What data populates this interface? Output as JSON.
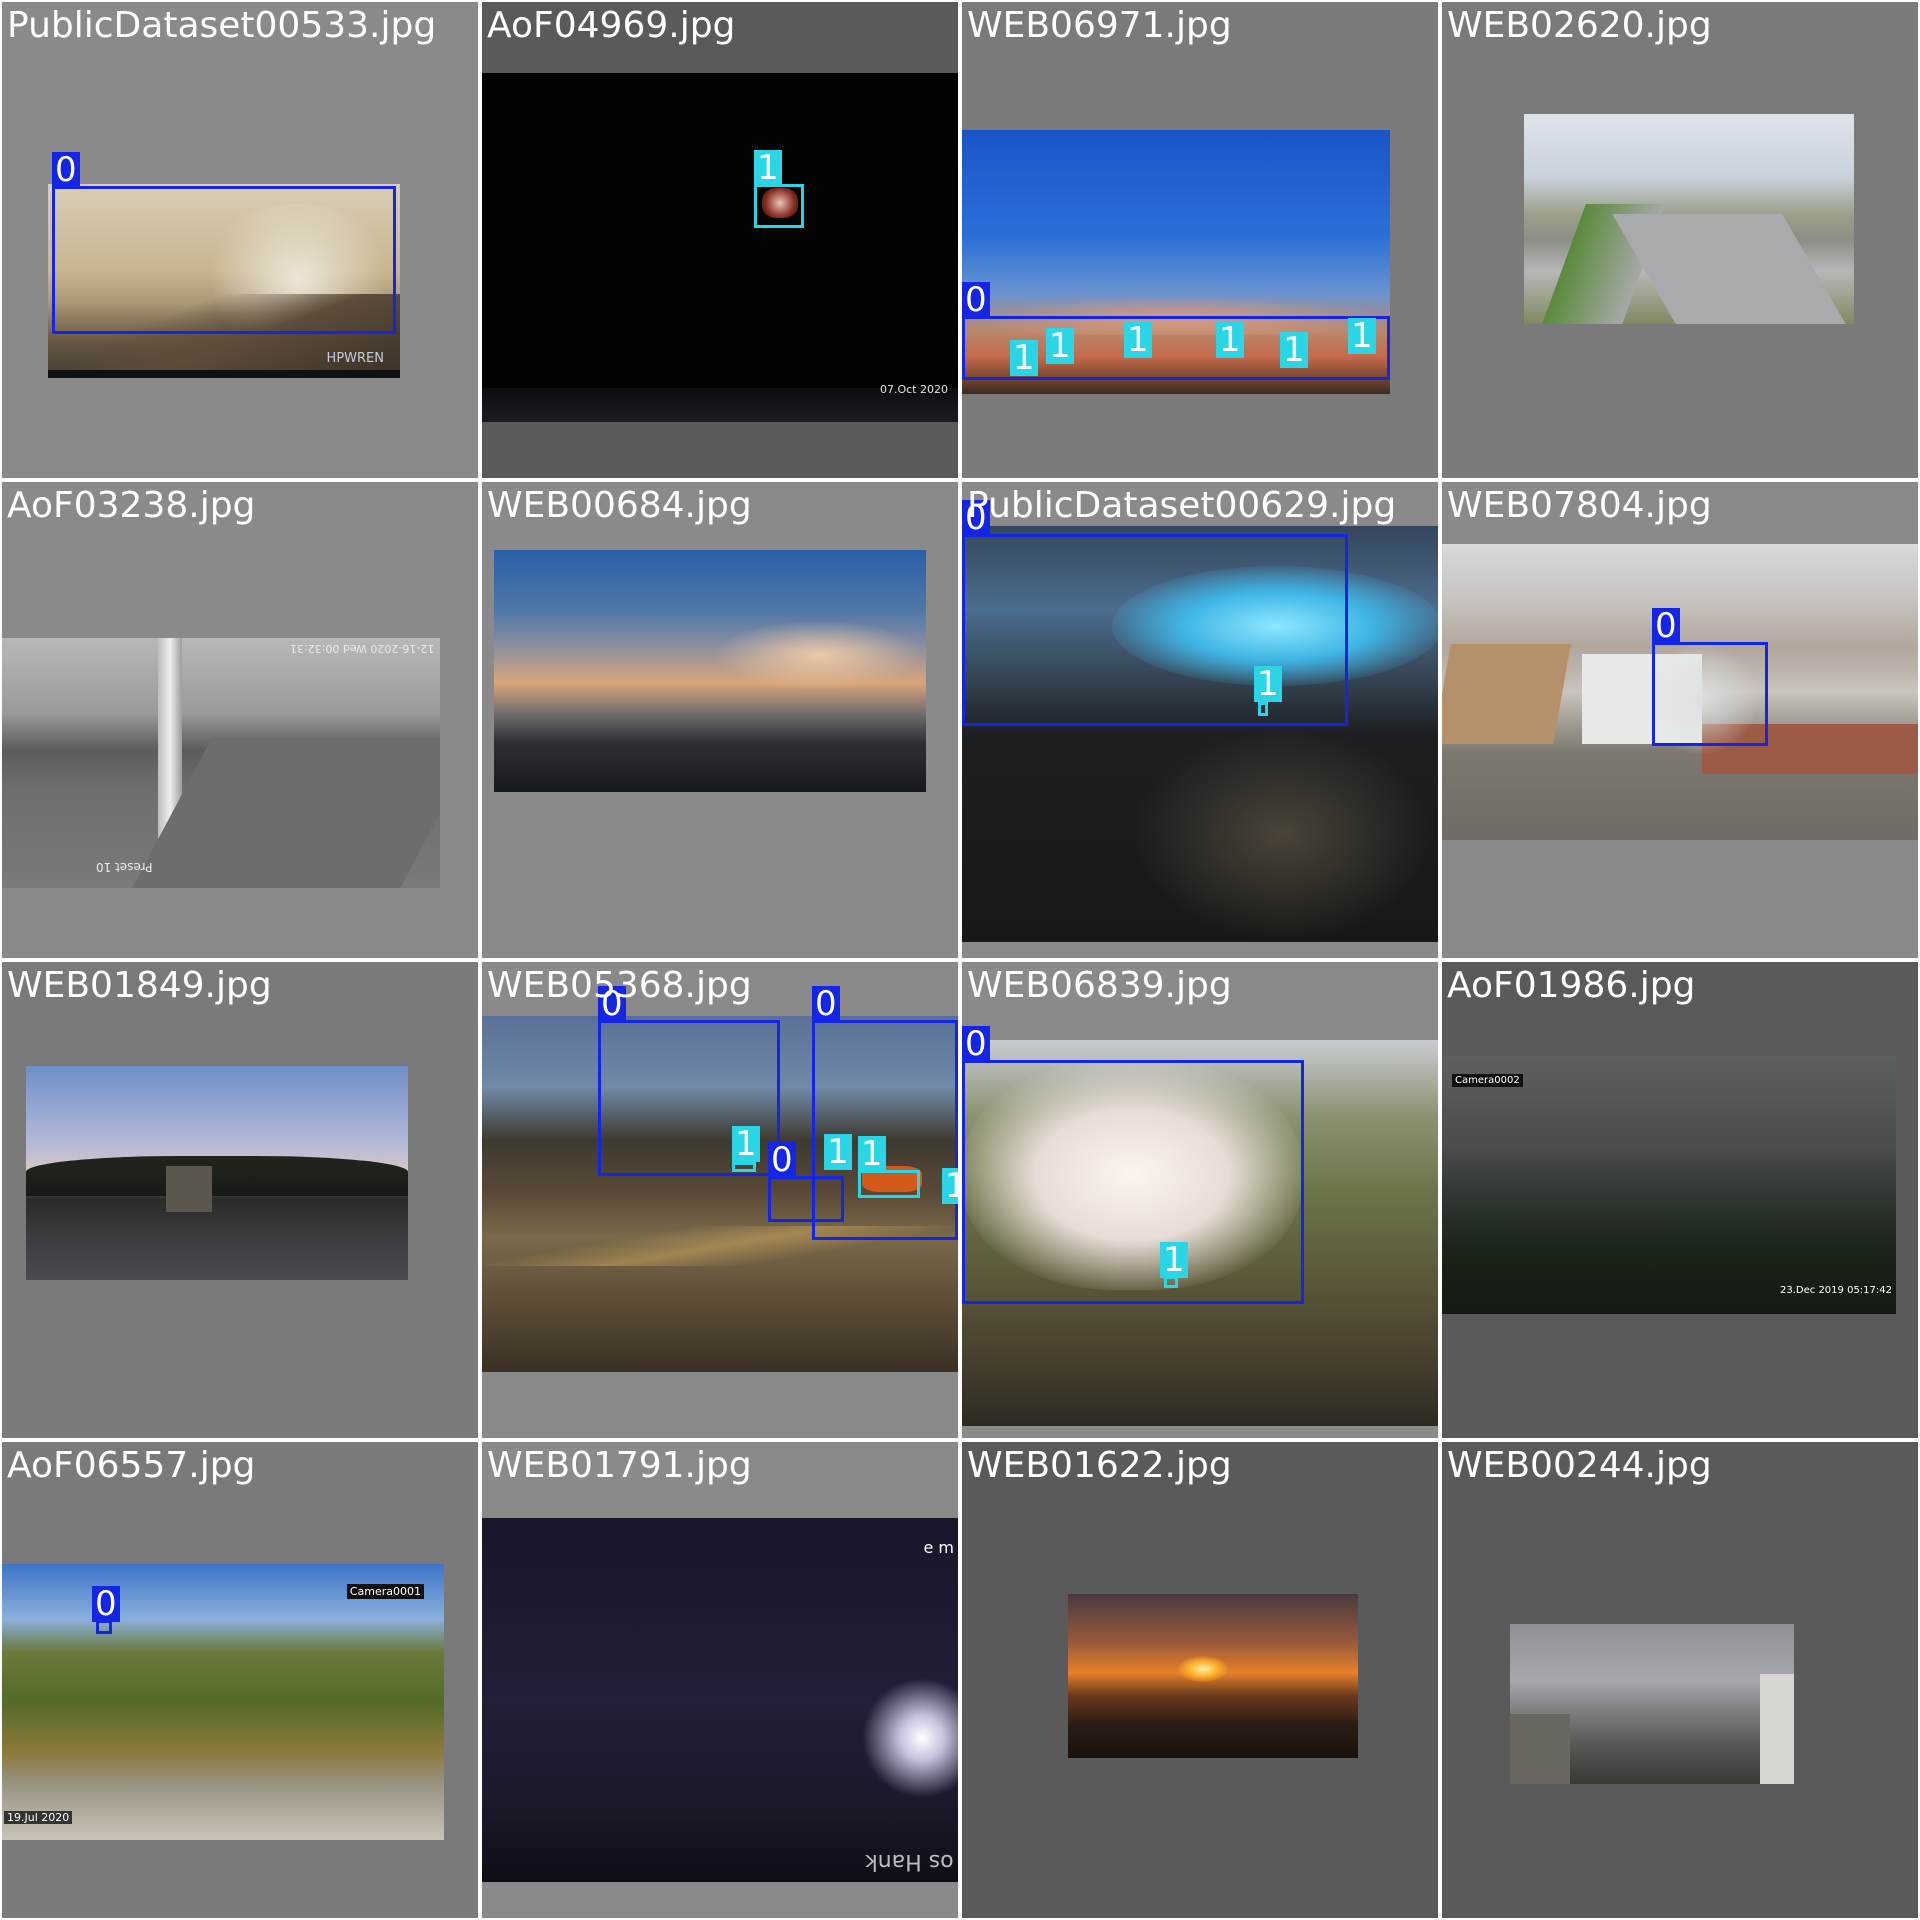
{
  "classes": {
    "0": "0",
    "1": "1"
  },
  "colors": {
    "class0": "#1525e6",
    "class1": "#2ad6e6",
    "tile_bg": "#8a8a8a"
  },
  "tiles": [
    {
      "name": "PublicDataset00533.jpg",
      "stamps": [
        "HPWREN"
      ],
      "labels": [
        "0"
      ]
    },
    {
      "name": "AoF04969.jpg",
      "stamps": [
        "07.Oct 2020"
      ],
      "labels": [
        "1"
      ]
    },
    {
      "name": "WEB06971.jpg",
      "stamps": [],
      "labels": [
        "0",
        "1",
        "1",
        "1",
        "1",
        "1",
        "1"
      ]
    },
    {
      "name": "WEB02620.jpg",
      "stamps": [],
      "labels": []
    },
    {
      "name": "AoF03238.jpg",
      "stamps": [
        "Preset 10",
        "12-16-2020 Wed 00:32:31"
      ],
      "labels": []
    },
    {
      "name": "WEB00684.jpg",
      "stamps": [],
      "labels": []
    },
    {
      "name": "PublicDataset00629.jpg",
      "stamps": [],
      "labels": [
        "0",
        "1"
      ]
    },
    {
      "name": "WEB07804.jpg",
      "stamps": [],
      "labels": [
        "0"
      ]
    },
    {
      "name": "WEB01849.jpg",
      "stamps": [],
      "labels": []
    },
    {
      "name": "WEB05368.jpg",
      "stamps": [],
      "labels": [
        "0",
        "0",
        "0",
        "1",
        "1",
        "1",
        "1"
      ]
    },
    {
      "name": "WEB06839.jpg",
      "stamps": [],
      "labels": [
        "0",
        "1"
      ]
    },
    {
      "name": "AoF01986.jpg",
      "stamps": [
        "Camera0002",
        "23.Dec 2019  05:17:42"
      ],
      "labels": []
    },
    {
      "name": "AoF06557.jpg",
      "stamps": [
        "Camera0001",
        "19.Jul 2020"
      ],
      "labels": [
        "0"
      ]
    },
    {
      "name": "WEB01791.jpg",
      "stamps": [
        "e m",
        "os Hank"
      ],
      "labels": []
    },
    {
      "name": "WEB01622.jpg",
      "stamps": [],
      "labels": []
    },
    {
      "name": "WEB00244.jpg",
      "stamps": [],
      "labels": []
    }
  ]
}
